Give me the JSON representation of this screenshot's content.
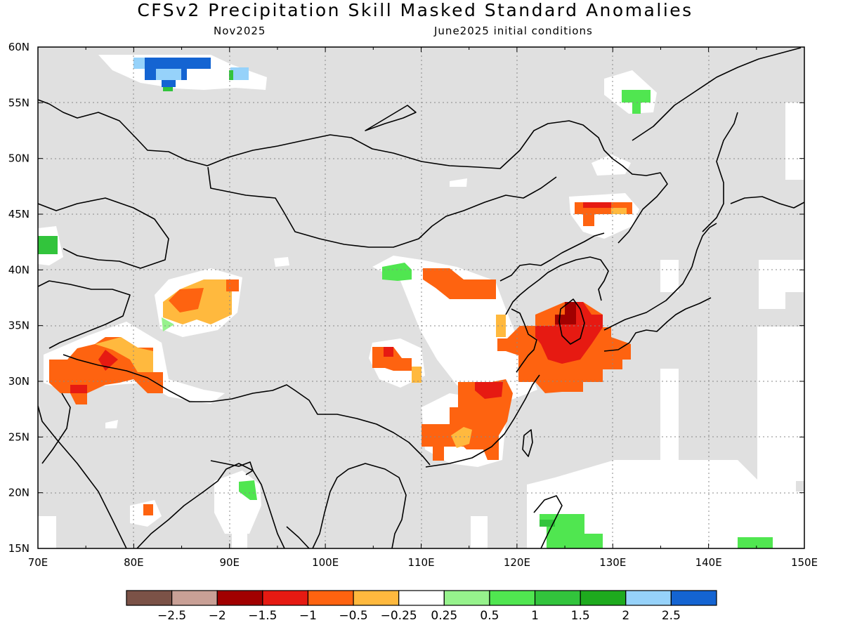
{
  "header": {
    "title": "CFSv2 Precipitation Skill Masked Standard Anomalies",
    "target_month": "Nov2025",
    "initial_conditions": "June2025 initial conditions"
  },
  "map": {
    "lon_labels": [
      "70E",
      "80E",
      "90E",
      "100E",
      "110E",
      "120E",
      "130E",
      "140E",
      "150E"
    ],
    "lat_labels": [
      "15N",
      "20N",
      "25N",
      "30N",
      "35N",
      "40N",
      "45N",
      "50N",
      "55N",
      "60N"
    ],
    "lon_range": [
      70,
      150
    ],
    "lat_range": [
      15,
      60
    ],
    "grid": "dotted, 5 degree",
    "masked_color": "#e0e0e0"
  },
  "colorbar": {
    "colors": [
      "#7b5247",
      "#c9a096",
      "#a10000",
      "#e61a12",
      "#fe6310",
      "#ffb93e",
      "#ffffff",
      "#96f28c",
      "#50e650",
      "#32c43c",
      "#1eaa1e",
      "#96d2fa",
      "#1464d2"
    ],
    "labels": [
      "−2.5",
      "−2",
      "−1.5",
      "−1",
      "−0.5",
      "−0.25",
      "0.25",
      "0.5",
      "1",
      "1.5",
      "2",
      "2.5"
    ]
  }
}
